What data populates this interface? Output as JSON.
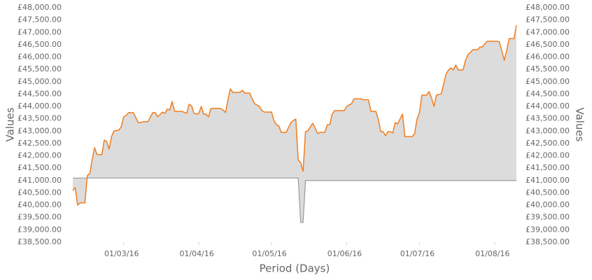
{
  "chart_data": {
    "type": "line",
    "x_label": "Period (Days)",
    "y_label": "Values",
    "y2_label": "Values",
    "xlim": [
      "2016-02-09",
      "2016-08-10"
    ],
    "xticks": [
      {
        "value": "2016-03-01",
        "label": "01/03/16"
      },
      {
        "value": "2016-04-01",
        "label": "01/04/16"
      },
      {
        "value": "2016-05-01",
        "label": "01/05/16"
      },
      {
        "value": "2016-06-01",
        "label": "01/06/16"
      },
      {
        "value": "2016-07-01",
        "label": "01/07/16"
      },
      {
        "value": "2016-08-01",
        "label": "01/08/16"
      }
    ],
    "ylim": [
      38500,
      48000
    ],
    "yticks": [
      {
        "value": 38500,
        "label": "£38,500.00"
      },
      {
        "value": 39000,
        "label": "£39,000.00"
      },
      {
        "value": 39500,
        "label": "£39,500.00"
      },
      {
        "value": 40000,
        "label": "£40,000.00"
      },
      {
        "value": 40500,
        "label": "£40,500.00"
      },
      {
        "value": 41000,
        "label": "£41,000.00"
      },
      {
        "value": 41500,
        "label": "£41,500.00"
      },
      {
        "value": 42000,
        "label": "£42,000.00"
      },
      {
        "value": 42500,
        "label": "£42,500.00"
      },
      {
        "value": 43000,
        "label": "£43,000.00"
      },
      {
        "value": 43500,
        "label": "£43,500.00"
      },
      {
        "value": 44000,
        "label": "£44,000.00"
      },
      {
        "value": 44500,
        "label": "£44,500.00"
      },
      {
        "value": 45000,
        "label": "£45,000.00"
      },
      {
        "value": 45500,
        "label": "£45,500.00"
      },
      {
        "value": 46000,
        "label": "£46,000.00"
      },
      {
        "value": 46500,
        "label": "£46,500.00"
      },
      {
        "value": 47000,
        "label": "£47,000.00"
      },
      {
        "value": 47500,
        "label": "£47,500.00"
      },
      {
        "value": 48000,
        "label": "£48,000.00"
      }
    ],
    "y2lim": [
      38500,
      48000
    ],
    "y2ticks": [
      {
        "value": 38500,
        "label": "£38,500.00"
      },
      {
        "value": 39000,
        "label": "£39,000.00"
      },
      {
        "value": 39500,
        "label": "£39,500.00"
      },
      {
        "value": 40000,
        "label": "£40,000.00"
      },
      {
        "value": 40500,
        "label": "£40,500.00"
      },
      {
        "value": 41000,
        "label": "£41,000.00"
      },
      {
        "value": 41500,
        "label": "£41,500.00"
      },
      {
        "value": 42000,
        "label": "£42,000.00"
      },
      {
        "value": 42500,
        "label": "£42,500.00"
      },
      {
        "value": 43000,
        "label": "£43,000.00"
      },
      {
        "value": 43500,
        "label": "£43,500.00"
      },
      {
        "value": 44000,
        "label": "£44,000.00"
      },
      {
        "value": 44500,
        "label": "£44,500.00"
      },
      {
        "value": 45000,
        "label": "£45,000.00"
      },
      {
        "value": 45500,
        "label": "£45,500.00"
      },
      {
        "value": 46000,
        "label": "£46,000.00"
      },
      {
        "value": 46500,
        "label": "£46,500.00"
      },
      {
        "value": 47000,
        "label": "£47,000.00"
      },
      {
        "value": 47500,
        "label": "£47,500.00"
      },
      {
        "value": 48000,
        "label": "£48,000.00"
      }
    ],
    "grid": false,
    "fill_color": "#dcdcdc",
    "series": [
      {
        "color": "#f07d1e",
        "x": [
          "2016-02-09",
          "2016-02-10",
          "2016-02-11",
          "2016-02-12",
          "2016-02-14",
          "2016-02-15",
          "2016-02-16",
          "2016-02-17",
          "2016-02-18",
          "2016-02-19",
          "2016-02-21",
          "2016-02-22",
          "2016-02-23",
          "2016-02-24",
          "2016-02-25",
          "2016-02-26",
          "2016-02-28",
          "2016-02-29",
          "2016-03-01",
          "2016-03-02",
          "2016-03-03",
          "2016-03-05",
          "2016-03-06",
          "2016-03-07",
          "2016-03-08",
          "2016-03-09",
          "2016-03-11",
          "2016-03-13",
          "2016-03-14",
          "2016-03-15",
          "2016-03-17",
          "2016-03-18",
          "2016-03-19",
          "2016-03-20",
          "2016-03-21",
          "2016-03-22",
          "2016-03-25",
          "2016-03-27",
          "2016-03-28",
          "2016-03-29",
          "2016-03-30",
          "2016-03-31",
          "2016-04-01",
          "2016-04-02",
          "2016-04-03",
          "2016-04-04",
          "2016-04-05",
          "2016-04-06",
          "2016-04-07",
          "2016-04-10",
          "2016-04-11",
          "2016-04-12",
          "2016-04-13",
          "2016-04-14",
          "2016-04-15",
          "2016-04-16",
          "2016-04-18",
          "2016-04-19",
          "2016-04-20",
          "2016-04-22",
          "2016-04-23",
          "2016-04-24",
          "2016-04-25",
          "2016-04-26",
          "2016-04-27",
          "2016-04-28",
          "2016-05-01",
          "2016-05-02",
          "2016-05-03",
          "2016-05-04",
          "2016-05-05",
          "2016-05-07",
          "2016-05-09",
          "2016-05-10",
          "2016-05-11",
          "2016-05-12",
          "2016-05-13",
          "2016-05-14",
          "2016-05-15",
          "2016-05-16",
          "2016-05-17",
          "2016-05-18",
          "2016-05-19",
          "2016-05-20",
          "2016-05-21",
          "2016-05-23",
          "2016-05-24",
          "2016-05-25",
          "2016-05-26",
          "2016-05-27",
          "2016-05-29",
          "2016-05-31",
          "2016-06-01",
          "2016-06-02",
          "2016-06-03",
          "2016-06-04",
          "2016-06-05",
          "2016-06-07",
          "2016-06-08",
          "2016-06-09",
          "2016-06-10",
          "2016-06-11",
          "2016-06-13",
          "2016-06-14",
          "2016-06-15",
          "2016-06-16",
          "2016-06-17",
          "2016-06-18",
          "2016-06-19",
          "2016-06-20",
          "2016-06-21",
          "2016-06-22",
          "2016-06-23",
          "2016-06-24",
          "2016-06-25",
          "2016-06-28",
          "2016-06-29",
          "2016-06-30",
          "2016-07-01",
          "2016-07-02",
          "2016-07-04",
          "2016-07-05",
          "2016-07-06",
          "2016-07-07",
          "2016-07-08",
          "2016-07-10",
          "2016-07-12",
          "2016-07-13",
          "2016-07-14",
          "2016-07-15",
          "2016-07-16",
          "2016-07-17",
          "2016-07-19",
          "2016-07-20",
          "2016-07-21",
          "2016-07-22",
          "2016-07-23",
          "2016-07-24",
          "2016-07-25",
          "2016-07-26",
          "2016-07-27",
          "2016-07-28",
          "2016-07-29",
          "2016-08-01",
          "2016-08-02",
          "2016-08-03",
          "2016-08-05",
          "2016-08-06",
          "2016-08-07",
          "2016-08-09",
          "2016-08-10"
        ],
        "values": [
          40600,
          40710,
          40000,
          40090,
          40090,
          41200,
          41280,
          41850,
          42330,
          42050,
          42050,
          42640,
          42580,
          42270,
          42780,
          43010,
          43040,
          43180,
          43580,
          43630,
          43750,
          43750,
          43550,
          43350,
          43350,
          43380,
          43380,
          43750,
          43750,
          43580,
          43770,
          43720,
          43890,
          43860,
          44200,
          43800,
          43800,
          43720,
          44090,
          44030,
          43720,
          43690,
          43720,
          44000,
          43690,
          43690,
          43580,
          43920,
          43920,
          43920,
          43860,
          43750,
          44260,
          44710,
          44570,
          44570,
          44570,
          44650,
          44540,
          44540,
          44310,
          44110,
          44060,
          44000,
          43830,
          43770,
          43770,
          43430,
          43260,
          43210,
          42950,
          42950,
          43350,
          43430,
          43490,
          41820,
          41730,
          41370,
          42980,
          43010,
          43180,
          43320,
          43120,
          42900,
          42950,
          42950,
          43260,
          43260,
          43690,
          43830,
          43830,
          43830,
          44000,
          44060,
          44110,
          44310,
          44310,
          44310,
          44260,
          44280,
          44260,
          43800,
          43800,
          43490,
          42980,
          42980,
          42810,
          42980,
          42980,
          42920,
          43350,
          43290,
          43490,
          43690,
          42780,
          42780,
          42900,
          43490,
          43750,
          44460,
          44460,
          44600,
          44340,
          44000,
          44460,
          44510,
          45310,
          45480,
          45560,
          45480,
          45680,
          45480,
          45480,
          45870,
          46100,
          46190,
          46300,
          46300,
          46300,
          46410,
          46410,
          46550,
          46640,
          46640,
          46640,
          46610,
          45870,
          46270,
          46750,
          46750,
          47290
        ]
      },
      {
        "color": "#999999",
        "x": [
          "2016-02-09",
          "2016-05-12",
          "2016-05-13",
          "2016-05-14",
          "2016-05-15",
          "2016-08-10"
        ],
        "values": [
          41100,
          41100,
          39300,
          39300,
          41000,
          41000
        ]
      }
    ]
  }
}
